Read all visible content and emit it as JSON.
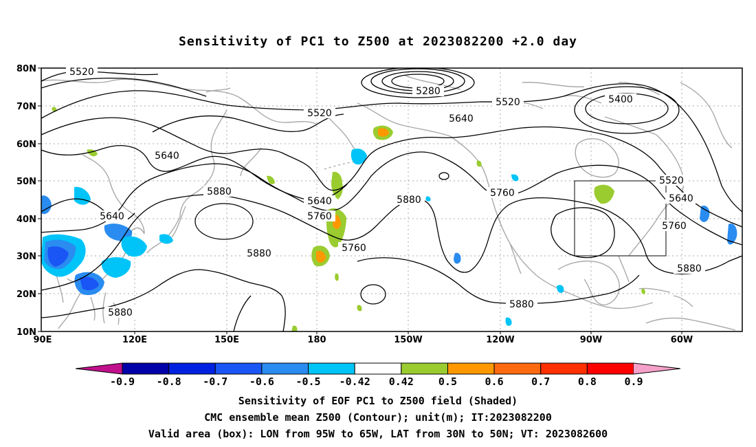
{
  "title": "Sensitivity of PC1 to Z500 at 2023082200 +2.0 day",
  "lat_labels": [
    "80N",
    "70N",
    "60N",
    "50N",
    "40N",
    "30N",
    "20N",
    "10N"
  ],
  "lon_labels": [
    "90E",
    "120E",
    "150E",
    "180",
    "150W",
    "120W",
    "90W",
    "60W"
  ],
  "contour_labels": [
    "5520",
    "5280",
    "5520",
    "5520",
    "5400",
    "5640",
    "5640",
    "5520",
    "5640",
    "5760",
    "5880",
    "5640",
    "5760",
    "5880",
    "5760",
    "5640",
    "5760",
    "5880",
    "5880",
    "5880",
    "5880",
    "5880",
    "5760",
    "5880"
  ],
  "colorbar": {
    "labels": [
      "-0.9",
      "-0.8",
      "-0.7",
      "-0.6",
      "-0.5",
      "-0.42",
      "0.42",
      "0.5",
      "0.6",
      "0.7",
      "0.8",
      "0.9"
    ],
    "colors": [
      "#0000a8",
      "#0022e0",
      "#1a55f5",
      "#2a8cf0",
      "#00c4f8",
      "#ffffff",
      "#9acc30",
      "#ff9800",
      "#ff6a10",
      "#ff3000",
      "#ff0000"
    ],
    "low_extend_color": "#c0108c",
    "high_extend_color": "#f4a0c8"
  },
  "captions": [
    "Sensitivity of EOF PC1 to Z500 field (Shaded)",
    "CMC ensemble mean Z500 (Contour); unit(m); IT:2023082200",
    "Valid area (box): LON from 95W to 65W, LAT from 30N to 50N; VT: 2023082600"
  ]
}
